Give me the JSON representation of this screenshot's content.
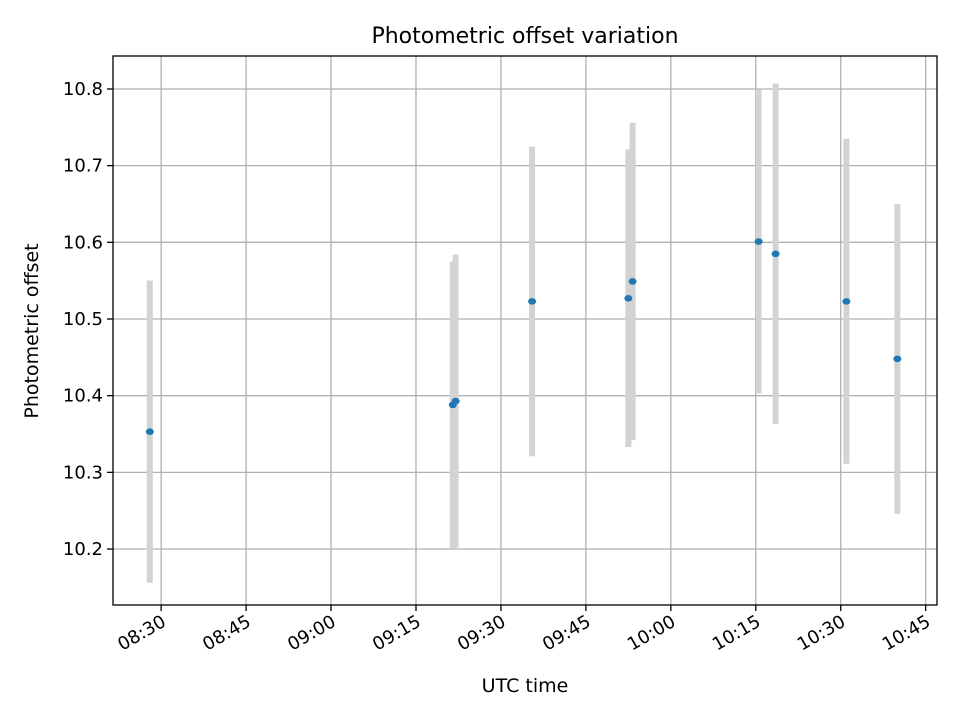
{
  "chart_data": {
    "type": "scatter",
    "title": "Photometric offset variation",
    "xlabel": "UTC time",
    "ylabel": "Photometric offset",
    "x_ticks": [
      "08:30",
      "08:45",
      "09:00",
      "09:15",
      "09:30",
      "09:45",
      "10:00",
      "10:15",
      "10:30",
      "10:45"
    ],
    "y_ticks": [
      "10.2",
      "10.3",
      "10.4",
      "10.5",
      "10.6",
      "10.7",
      "10.8"
    ],
    "xlim": [
      "08:21:30",
      "10:47:00"
    ],
    "ylim": [
      10.127,
      10.843
    ],
    "grid": true,
    "point_color": "#1f77b4",
    "errorbar_color": "#d3d3d3",
    "points": [
      {
        "x": "08:28:00",
        "y": 10.353,
        "yerr": 0.197
      },
      {
        "x": "09:21:30",
        "y": 10.388,
        "yerr": 0.187
      },
      {
        "x": "09:22:00",
        "y": 10.393,
        "yerr": 0.191
      },
      {
        "x": "09:35:30",
        "y": 10.523,
        "yerr": 0.202
      },
      {
        "x": "09:52:30",
        "y": 10.527,
        "yerr": 0.194
      },
      {
        "x": "09:53:15",
        "y": 10.549,
        "yerr": 0.207
      },
      {
        "x": "10:15:30",
        "y": 10.601,
        "yerr": 0.198
      },
      {
        "x": "10:18:30",
        "y": 10.585,
        "yerr": 0.222
      },
      {
        "x": "10:31:00",
        "y": 10.523,
        "yerr": 0.212
      },
      {
        "x": "10:40:00",
        "y": 10.448,
        "yerr": 0.202
      }
    ]
  }
}
